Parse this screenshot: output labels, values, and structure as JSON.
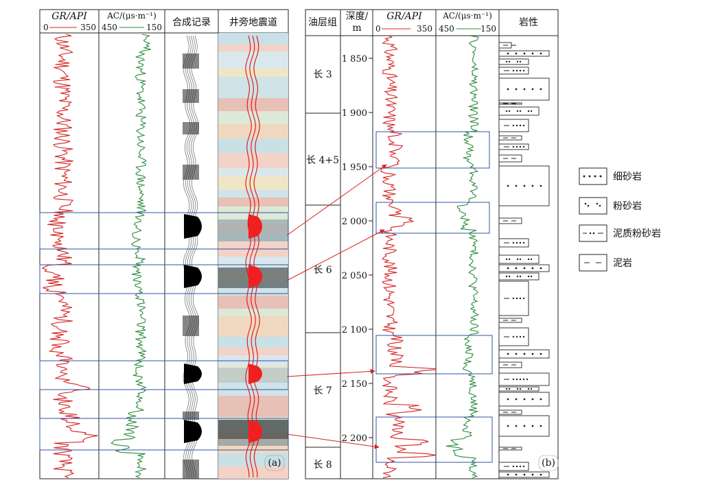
{
  "panel_a": {
    "headers": {
      "gr_label": "GR/API",
      "gr_min": "0",
      "gr_max": "350",
      "ac_label": "AC/(μs·m⁻¹)",
      "ac_min": "450",
      "ac_max": "150",
      "synthetic": "合成记录",
      "seismic": "井旁地震道"
    },
    "label": "(a)"
  },
  "panel_b": {
    "headers": {
      "formation": "油层组",
      "depth_line1": "深度/",
      "depth_line2": "m",
      "gr_label": "GR/API",
      "gr_min": "0",
      "gr_max": "350",
      "ac_label": "AC/(μs·m⁻¹)",
      "ac_min": "450",
      "ac_max": "150",
      "lithology": "岩性"
    },
    "formations": [
      "长 3",
      "长 4+5",
      "长 6",
      "长 7",
      "长 8"
    ],
    "depth_ticks": [
      "1 850",
      "1 900",
      "1 950",
      "2 000",
      "2 050",
      "2 100",
      "2 150",
      "2 200"
    ],
    "label": "(b)"
  },
  "legend": [
    {
      "symbol": "fine",
      "label": "细砂岩"
    },
    {
      "symbol": "silt",
      "label": "粉砂岩"
    },
    {
      "symbol": "muddy",
      "label": "泥质粉砂岩"
    },
    {
      "symbol": "mud",
      "label": "泥岩"
    }
  ],
  "colors": {
    "gr_curve": "#d42020",
    "ac_curve": "#2a8a3a",
    "highlight_box": "#3050a0",
    "arrow": "#d42020",
    "seismic_peak": "#e01010"
  }
}
